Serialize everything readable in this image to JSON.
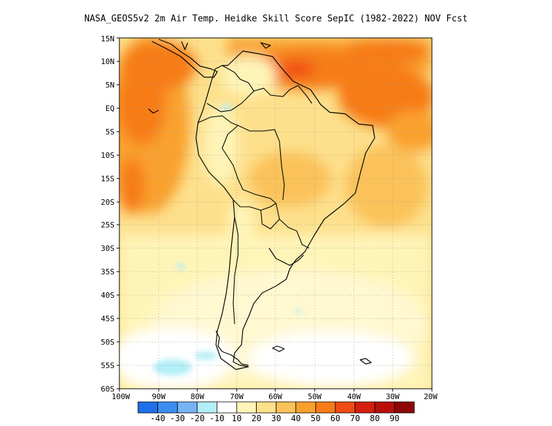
{
  "title": "NASA_GEOS5v2  2m Air Temp. Heidke Skill Score SepIC (1982-2022) NOV Fcst",
  "map": {
    "projection": "lat-lon",
    "lon_range": [
      -100,
      -20
    ],
    "lat_range": [
      -60,
      15
    ],
    "grid_lines": "dotted",
    "lat_labels": [
      "15N",
      "10N",
      "5N",
      "EQ",
      "5S",
      "10S",
      "15S",
      "20S",
      "25S",
      "30S",
      "35S",
      "40S",
      "45S",
      "50S",
      "55S",
      "60S"
    ],
    "lon_labels": [
      "100W",
      "90W",
      "80W",
      "70W",
      "60W",
      "50W",
      "40W",
      "30W",
      "20W"
    ]
  },
  "colorbar": {
    "labels": [
      "-40",
      "-30",
      "-20",
      "-10",
      "10",
      "20",
      "30",
      "40",
      "50",
      "60",
      "70",
      "80",
      "90"
    ],
    "colors": [
      "#1f6fe8",
      "#3b8ef0",
      "#76b4f5",
      "#b4eef7",
      "#ffffff",
      "#fff4b8",
      "#fde08c",
      "#fbc25a",
      "#f9a12e",
      "#f77b18",
      "#ef4b12",
      "#d41e0e",
      "#b80f0a",
      "#8e0606"
    ]
  },
  "field_notes": {
    "high_skill_regions": [
      "eastern tropical Pacific",
      "tropical Atlantic north of Brazil",
      "northern South America"
    ],
    "low_skill_regions": [
      "southern Patagonia",
      "Southern Ocean near 55S"
    ]
  }
}
